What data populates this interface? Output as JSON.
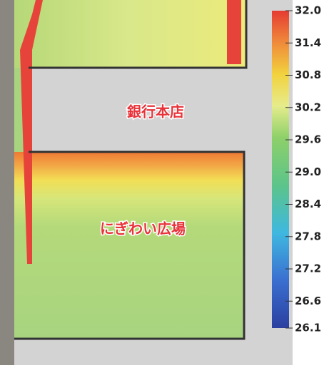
{
  "labels": {
    "bank": "銀行本店",
    "plaza": "にぎわい広場"
  },
  "colorbar": {
    "clim": [
      26.1,
      32.0
    ],
    "ticks": [
      {
        "value": 32.0,
        "label": "32.0"
      },
      {
        "value": 31.4,
        "label": "31.4"
      },
      {
        "value": 30.8,
        "label": "30.8"
      },
      {
        "value": 30.2,
        "label": "30.2"
      },
      {
        "value": 29.6,
        "label": "29.6"
      },
      {
        "value": 29.0,
        "label": "29.0"
      },
      {
        "value": 28.4,
        "label": "28.4"
      },
      {
        "value": 27.8,
        "label": "27.8"
      },
      {
        "value": 27.2,
        "label": "27.2"
      },
      {
        "value": 26.6,
        "label": "26.6"
      },
      {
        "value": 26.1,
        "label": "26.1"
      }
    ]
  }
}
